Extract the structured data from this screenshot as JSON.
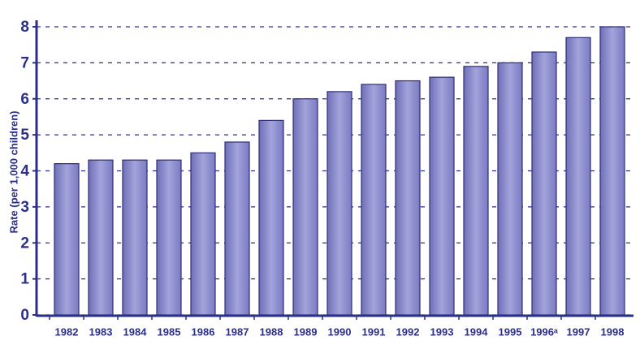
{
  "chart_data": {
    "type": "bar",
    "y_label": "Rate (per 1,000 children)",
    "categories": [
      "1982",
      "1983",
      "1984",
      "1985",
      "1986",
      "1987",
      "1988",
      "1989",
      "1990",
      "1991",
      "1992",
      "1993",
      "1994",
      "1995",
      "1996ᵃ",
      "1997",
      "1998"
    ],
    "values": [
      4.2,
      4.3,
      4.3,
      4.3,
      4.5,
      4.8,
      5.4,
      6.0,
      6.2,
      6.4,
      6.5,
      6.6,
      6.9,
      7.0,
      7.3,
      7.7,
      8.0
    ],
    "color": "#8f8fd2",
    "ylim": [
      0,
      8
    ],
    "yticks": [
      0,
      1,
      2,
      3,
      4,
      5,
      6,
      7,
      8
    ],
    "grid": true
  }
}
